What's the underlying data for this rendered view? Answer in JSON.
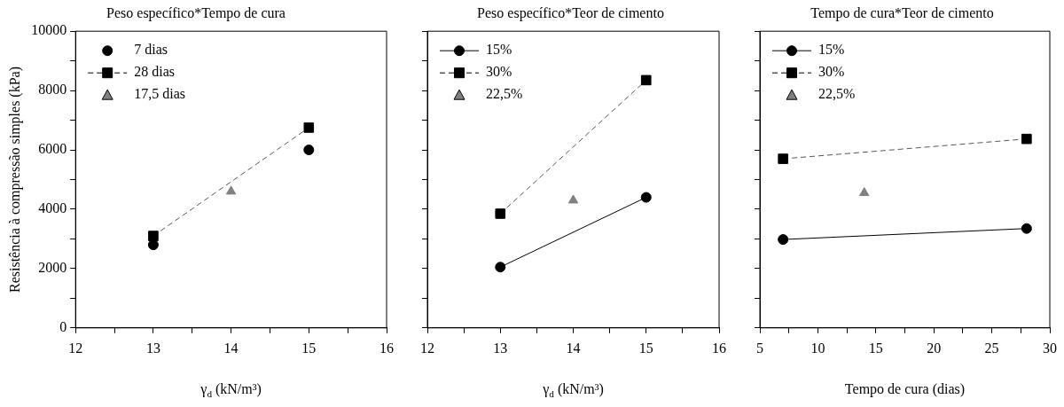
{
  "chart_data": [
    {
      "type": "line",
      "title": "Peso específico*Tempo de cura",
      "xlabel": "γ$_{d}$ (kN/m³)",
      "ylabel": "Resistência à compressão simples (kPa)",
      "xlim": [
        12,
        16
      ],
      "xticks": [
        12,
        {
          "value": 12.5,
          "label": null
        },
        13,
        {
          "value": 13.5,
          "label": null
        },
        14,
        {
          "value": 14.5,
          "label": null
        },
        15,
        {
          "value": 15.5,
          "label": null
        },
        16
      ],
      "ylim": [
        0,
        10000
      ],
      "yticks": [
        0,
        {
          "value": 1000,
          "label": null
        },
        2000,
        {
          "value": 3000,
          "label": null
        },
        4000,
        {
          "value": 5000,
          "label": null
        },
        6000,
        {
          "value": 7000,
          "label": null
        },
        8000,
        {
          "value": 9000,
          "label": null
        },
        10000
      ],
      "legend": "top left",
      "grid": false,
      "series": [
        {
          "name": "7 dias",
          "type": "scatter",
          "color": "#000000",
          "marker": "circle",
          "x": [
            13,
            15
          ],
          "values": [
            2800,
            6000
          ]
        },
        {
          "name": "28 dias",
          "type": "line",
          "color": "#000000",
          "marker": "square",
          "line_style": "dashed",
          "x": [
            13,
            15
          ],
          "values": [
            3100,
            6750
          ]
        },
        {
          "name": "17,5 dias",
          "type": "scatter",
          "color": "#808080",
          "marker": "triangle",
          "x": [
            14
          ],
          "values": [
            4600
          ]
        }
      ]
    },
    {
      "type": "line",
      "title": "Peso específico*Teor de cimento",
      "xlabel": "γ$_{d}$ (kN/m³)",
      "xlim": [
        12,
        16
      ],
      "xticks": [
        12,
        {
          "value": 12.5,
          "label": null
        },
        13,
        {
          "value": 13.5,
          "label": null
        },
        14,
        {
          "value": 14.5,
          "label": null
        },
        15,
        {
          "value": 15.5,
          "label": null
        },
        16
      ],
      "ylim": [
        0,
        10000
      ],
      "yticks": [
        0,
        {
          "value": 1000,
          "label": null
        },
        {
          "value": 2000,
          "label": null
        },
        {
          "value": 3000,
          "label": null
        },
        {
          "value": 4000,
          "label": null
        },
        {
          "value": 5000,
          "label": null
        },
        {
          "value": 6000,
          "label": null
        },
        {
          "value": 7000,
          "label": null
        },
        {
          "value": 8000,
          "label": null
        },
        {
          "value": 9000,
          "label": null
        },
        {
          "value": 10000,
          "label": null
        }
      ],
      "tick_labels": "x",
      "legend": "top left",
      "grid": false,
      "series": [
        {
          "name": "15%",
          "type": "line",
          "color": "#000000",
          "marker": "circle",
          "line_style": "solid",
          "x": [
            13,
            15
          ],
          "values": [
            2050,
            4400
          ]
        },
        {
          "name": "30%",
          "type": "line",
          "color": "#000000",
          "marker": "square",
          "line_style": "dashed",
          "x": [
            13,
            15
          ],
          "values": [
            3850,
            8350
          ]
        },
        {
          "name": "22,5%",
          "type": "scatter",
          "color": "#808080",
          "marker": "triangle",
          "x": [
            14
          ],
          "values": [
            4300
          ]
        }
      ]
    },
    {
      "type": "line",
      "title": "Tempo de cura*Teor de cimento",
      "xlabel": "Tempo de cura (dias)",
      "xlim": [
        5,
        30
      ],
      "xticks": [
        5,
        {
          "value": 7.5,
          "label": null
        },
        10,
        {
          "value": 12.5,
          "label": null
        },
        15,
        {
          "value": 17.5,
          "label": null
        },
        20,
        {
          "value": 22.5,
          "label": null
        },
        25,
        {
          "value": 27.5,
          "label": null
        },
        30
      ],
      "ylim": [
        0,
        10000
      ],
      "yticks": [
        {
          "value": 0,
          "label": null
        },
        {
          "value": 1000,
          "label": null
        },
        {
          "value": 2000,
          "label": null
        },
        {
          "value": 3000,
          "label": null
        },
        {
          "value": 4000,
          "label": null
        },
        {
          "value": 5000,
          "label": null
        },
        {
          "value": 6000,
          "label": null
        },
        {
          "value": 7000,
          "label": null
        },
        {
          "value": 8000,
          "label": null
        },
        {
          "value": 9000,
          "label": null
        },
        {
          "value": 10000,
          "label": null
        }
      ],
      "tick_labels": "x",
      "legend": "top left",
      "grid": false,
      "series": [
        {
          "name": "15%",
          "type": "line",
          "color": "#000000",
          "marker": "circle",
          "line_style": "solid",
          "x": [
            7,
            28
          ],
          "values": [
            2980,
            3350
          ]
        },
        {
          "name": "30%",
          "type": "line",
          "color": "#000000",
          "marker": "square",
          "line_style": "dashed",
          "x": [
            7,
            28
          ],
          "values": [
            5700,
            6370
          ]
        },
        {
          "name": "22,5%",
          "type": "scatter",
          "color": "#808080",
          "marker": "triangle",
          "x": [
            14
          ],
          "values": [
            4550
          ]
        }
      ]
    }
  ]
}
